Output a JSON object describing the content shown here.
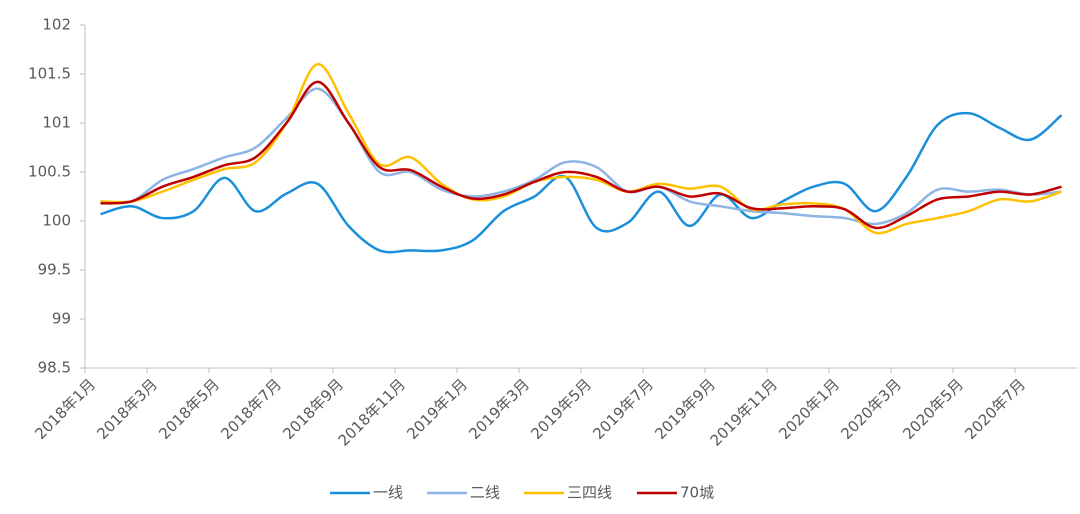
{
  "chart_data": {
    "type": "line",
    "categories": [
      "2018年1月",
      null,
      "2018年3月",
      null,
      "2018年5月",
      null,
      "2018年7月",
      null,
      "2018年9月",
      null,
      "2018年11月",
      null,
      "2019年1月",
      null,
      "2019年3月",
      null,
      "2019年5月",
      null,
      "2019年7月",
      null,
      "2019年9月",
      null,
      "2019年11月",
      null,
      "2020年1月",
      null,
      "2020年3月",
      null,
      "2020年5月",
      null,
      "2020年7月",
      null
    ],
    "series": [
      {
        "name": "一线",
        "color": "#1a8fdb",
        "values": [
          100.07,
          100.15,
          100.03,
          100.1,
          100.44,
          100.1,
          100.28,
          100.38,
          99.95,
          99.7,
          99.7,
          99.7,
          99.8,
          100.1,
          100.25,
          100.45,
          99.93,
          99.98,
          100.3,
          99.95,
          100.27,
          100.03,
          100.2,
          100.35,
          100.38,
          100.1,
          100.45,
          100.98,
          101.1,
          100.95,
          100.83,
          101.08
        ]
      },
      {
        "name": "二线",
        "color": "#8db4e2",
        "values": [
          100.2,
          100.2,
          100.42,
          100.53,
          100.65,
          100.75,
          101.05,
          101.35,
          101.0,
          100.5,
          100.5,
          100.32,
          100.25,
          100.3,
          100.42,
          100.6,
          100.55,
          100.3,
          100.35,
          100.2,
          100.15,
          100.1,
          100.08,
          100.05,
          100.03,
          99.97,
          100.08,
          100.32,
          100.3,
          100.32,
          100.27,
          100.3
        ]
      },
      {
        "name": "三四线",
        "color": "#ffc000",
        "values": [
          100.2,
          100.2,
          100.3,
          100.42,
          100.53,
          100.6,
          101.0,
          101.6,
          101.1,
          100.58,
          100.65,
          100.38,
          100.22,
          100.25,
          100.4,
          100.45,
          100.42,
          100.3,
          100.38,
          100.33,
          100.35,
          100.12,
          100.17,
          100.18,
          100.12,
          99.88,
          99.97,
          100.03,
          100.1,
          100.22,
          100.2,
          100.3
        ]
      },
      {
        "name": "70城",
        "color": "#c00000",
        "values": [
          100.18,
          100.2,
          100.35,
          100.45,
          100.57,
          100.65,
          101.0,
          101.42,
          101.0,
          100.55,
          100.52,
          100.35,
          100.23,
          100.27,
          100.4,
          100.5,
          100.45,
          100.3,
          100.35,
          100.25,
          100.28,
          100.13,
          100.13,
          100.15,
          100.12,
          99.93,
          100.05,
          100.22,
          100.25,
          100.3,
          100.27,
          100.35
        ]
      }
    ],
    "ylim": [
      98.5,
      102
    ],
    "yticks": [
      {
        "value": 98.5,
        "label": "98.5"
      },
      99,
      {
        "value": 99.5,
        "label": "99.5"
      },
      100,
      {
        "value": 100.5,
        "label": "100.5"
      },
      101,
      {
        "value": 101.5,
        "label": "101.5"
      },
      102
    ],
    "legend": "bottom"
  }
}
